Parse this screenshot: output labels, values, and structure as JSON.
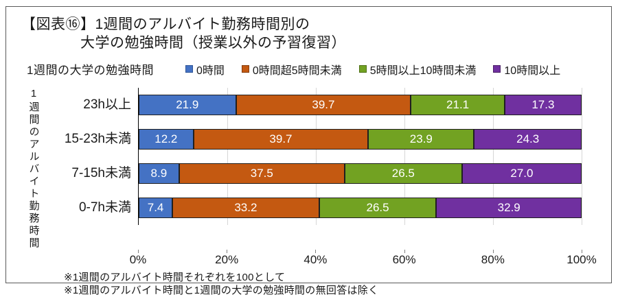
{
  "figure": {
    "title_line1": "【図表⑯】1週間のアルバイト勤務時間別の",
    "title_line2": "大学の勉強時間（授業以外の予習復習）",
    "footnote1": "※1週間のアルバイト時間それぞれを100として",
    "footnote2": "※1週間のアルバイト時間と1週間の大学の勉強時間の無回答は除く"
  },
  "chart_data": {
    "type": "bar",
    "orientation": "horizontal",
    "stacked": true,
    "grid": true,
    "legend_position": "top",
    "legend_title": "1週間の大学の勉強時間",
    "yaxis_title": "1週間のアルバイト勤務時間",
    "categories": [
      "23h以上",
      "15-23h未満",
      "7-15h未満",
      "0-7h未満"
    ],
    "series": [
      {
        "name": "0時間",
        "color": "#4472c4",
        "border": "#2f5597",
        "values": [
          21.9,
          12.2,
          8.9,
          7.4
        ]
      },
      {
        "name": "0時間超5時間未満",
        "color": "#c45911",
        "border": "#843c0c",
        "values": [
          39.7,
          39.7,
          37.5,
          33.2
        ]
      },
      {
        "name": "5時間以上10時間未満",
        "color": "#72a222",
        "border": "#4e7016",
        "values": [
          21.1,
          23.9,
          26.5,
          26.5
        ]
      },
      {
        "name": "10時間以上",
        "color": "#7030a0",
        "border": "#4b2066",
        "values": [
          17.3,
          24.3,
          27.0,
          32.9
        ]
      }
    ],
    "x_ticks": [
      "0%",
      "20%",
      "40%",
      "60%",
      "80%",
      "100%"
    ],
    "xlim": [
      0,
      100
    ]
  }
}
